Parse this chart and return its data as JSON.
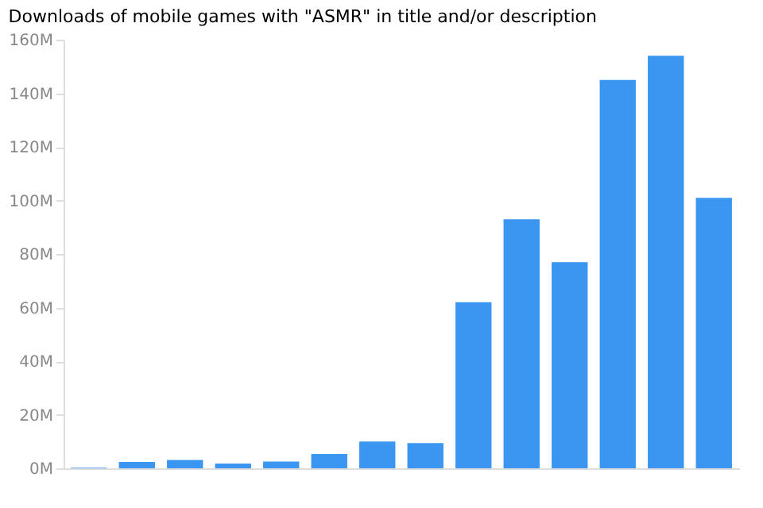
{
  "chart_data": {
    "type": "bar",
    "title": "Downloads of mobile games with \"ASMR\" in title and/or description",
    "categories": [
      null,
      null,
      null,
      null,
      null,
      null,
      null,
      null,
      null,
      null,
      null,
      null,
      null,
      null
    ],
    "values": [
      0.2,
      2.4,
      3.1,
      1.8,
      2.5,
      5.3,
      10,
      9.4,
      62,
      93,
      77,
      145,
      154,
      101
    ],
    "color": "#3a96f0",
    "ylim": [
      0,
      160
    ],
    "yticks": [
      {
        "value": 0,
        "label": "0M"
      },
      {
        "value": 20,
        "label": "20M"
      },
      {
        "value": 40,
        "label": "40M"
      },
      {
        "value": 60,
        "label": "60M"
      },
      {
        "value": 80,
        "label": "80M"
      },
      {
        "value": 100,
        "label": "100M"
      },
      {
        "value": 120,
        "label": "120M"
      },
      {
        "value": 140,
        "label": "140M"
      },
      {
        "value": 160,
        "label": "160M"
      }
    ],
    "grid": false
  }
}
